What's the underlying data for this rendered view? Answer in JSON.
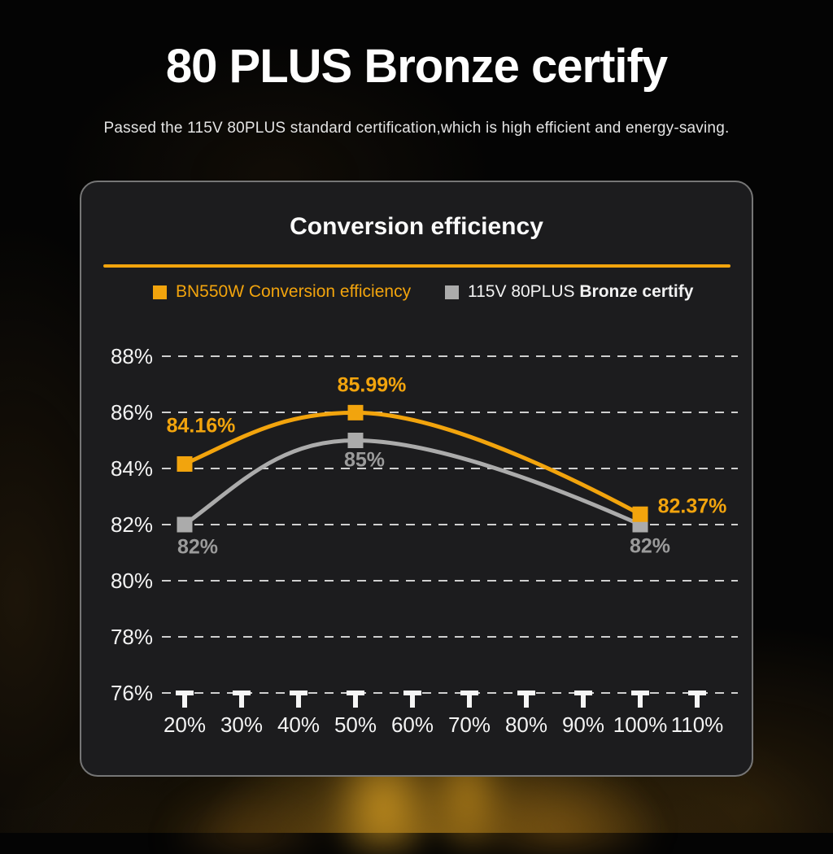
{
  "page": {
    "title": "80 PLUS Bronze certify",
    "subtitle": "Passed the 115V 80PLUS standard certification,which is high efficient and energy-saving."
  },
  "colors": {
    "accent_orange": "#F2A40D",
    "series_gray": "#ABABAB",
    "gray_label": "#9B9B9B",
    "panel_background": "#1c1c1e",
    "panel_border": "#767676",
    "page_background": "#040404",
    "text_white": "#f2f2f2"
  },
  "legend": [
    {
      "label": "BN550W Conversion efficiency",
      "color": "#F2A40D"
    },
    {
      "label_regular": "115V 80PLUS",
      "label_bold": "Bronze certify",
      "color": "#ABABAB"
    }
  ],
  "chart_data": {
    "type": "line",
    "title": "Conversion efficiency",
    "x": [
      20,
      50,
      100
    ],
    "series": [
      {
        "name": "BN550W Conversion efficiency",
        "color": "#F2A40D",
        "label_color": "#F2A40D",
        "values": [
          84.16,
          85.99,
          82.37
        ],
        "point_labels": [
          "84.16%",
          "85.99%",
          "82.37%"
        ],
        "marker": "square"
      },
      {
        "name": "115V 80PLUS Bronze certify",
        "color": "#ABABAB",
        "label_color": "#9B9B9B",
        "values": [
          82,
          85,
          82
        ],
        "point_labels": [
          "82%",
          "85%",
          "82%"
        ],
        "marker": "square"
      }
    ],
    "x_ticks": [
      20,
      30,
      40,
      50,
      60,
      70,
      80,
      90,
      100,
      110
    ],
    "x_tick_labels": [
      "20%",
      "30%",
      "40%",
      "50%",
      "60%",
      "70%",
      "80%",
      "90%",
      "100%",
      "110%"
    ],
    "y_ticks": [
      88,
      86,
      84,
      82,
      80,
      78,
      76
    ],
    "y_tick_labels": [
      "88%",
      "86%",
      "84%",
      "82%",
      "80%",
      "78%",
      "76%"
    ],
    "xlim": [
      10,
      115
    ],
    "ylim": [
      76,
      89
    ],
    "grid": "horizontal-dashed",
    "legend_position": "top"
  }
}
